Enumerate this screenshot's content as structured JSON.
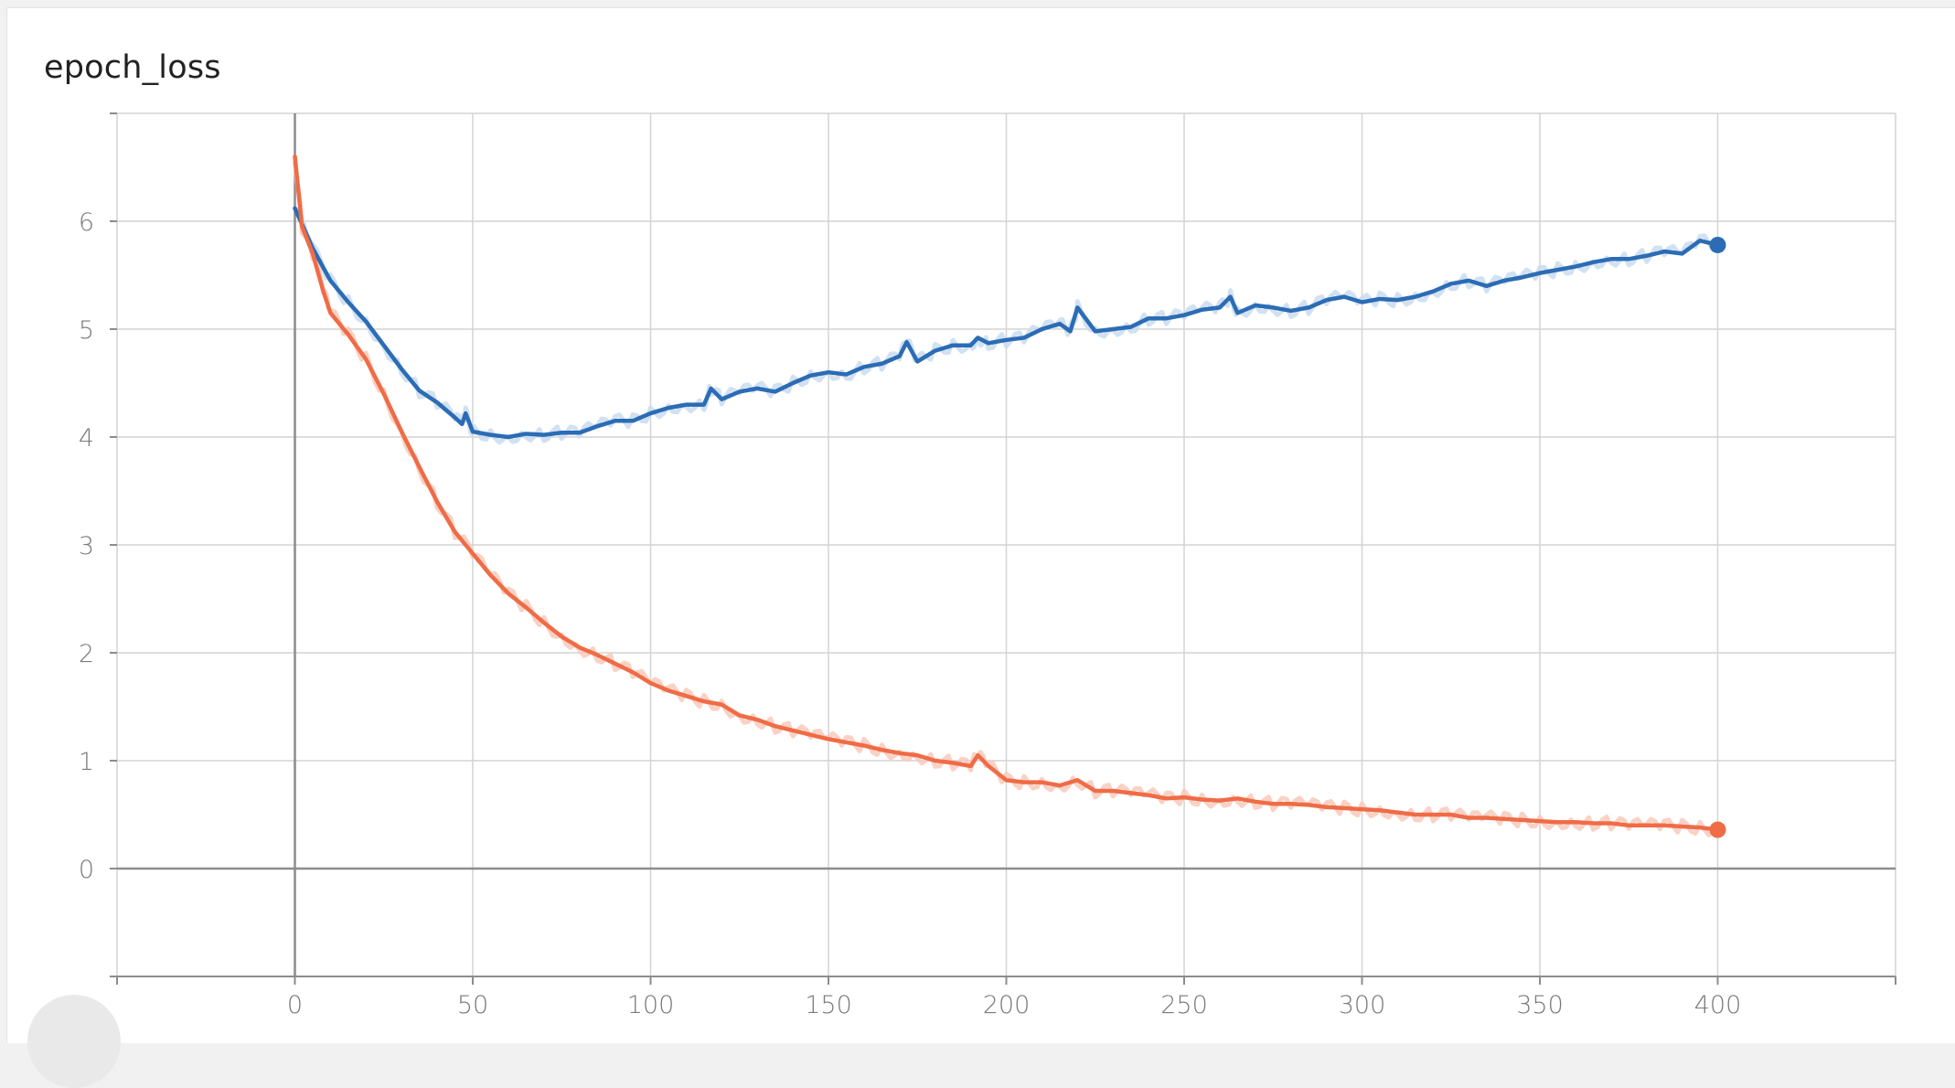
{
  "chart_data": {
    "type": "line",
    "title": "epoch_loss",
    "xlabel": "",
    "ylabel": "",
    "xlim": [
      -50,
      450
    ],
    "ylim": [
      -1,
      7
    ],
    "x_ticks": [
      0,
      50,
      100,
      150,
      200,
      250,
      300,
      350,
      400
    ],
    "y_ticks": [
      0,
      1,
      2,
      3,
      4,
      5,
      6
    ],
    "grid": true,
    "series": [
      {
        "color": "#2b6cb5",
        "raw_color": "#c9dcf0",
        "x": [
          0,
          5,
          10,
          15,
          20,
          25,
          30,
          35,
          40,
          45,
          47,
          48,
          50,
          55,
          60,
          65,
          70,
          75,
          80,
          85,
          90,
          95,
          100,
          105,
          110,
          115,
          117,
          120,
          125,
          130,
          135,
          140,
          145,
          150,
          155,
          160,
          165,
          170,
          172,
          175,
          180,
          185,
          190,
          192,
          195,
          200,
          205,
          210,
          215,
          218,
          220,
          225,
          230,
          235,
          240,
          245,
          250,
          255,
          260,
          263,
          265,
          270,
          275,
          280,
          285,
          290,
          295,
          300,
          305,
          310,
          315,
          320,
          325,
          330,
          335,
          340,
          345,
          350,
          355,
          360,
          365,
          370,
          375,
          380,
          385,
          390,
          395,
          400
        ],
        "values": [
          6.12,
          5.75,
          5.45,
          5.25,
          5.07,
          4.85,
          4.63,
          4.43,
          4.32,
          4.18,
          4.12,
          4.22,
          4.05,
          4.02,
          4.0,
          4.03,
          4.02,
          4.04,
          4.04,
          4.1,
          4.15,
          4.15,
          4.22,
          4.27,
          4.3,
          4.3,
          4.45,
          4.35,
          4.42,
          4.45,
          4.42,
          4.5,
          4.57,
          4.6,
          4.58,
          4.65,
          4.68,
          4.75,
          4.88,
          4.7,
          4.8,
          4.85,
          4.85,
          4.92,
          4.87,
          4.9,
          4.92,
          5.0,
          5.05,
          4.98,
          5.2,
          4.98,
          5.0,
          5.02,
          5.1,
          5.1,
          5.13,
          5.18,
          5.2,
          5.3,
          5.15,
          5.22,
          5.2,
          5.17,
          5.2,
          5.27,
          5.3,
          5.25,
          5.28,
          5.27,
          5.3,
          5.35,
          5.42,
          5.45,
          5.4,
          5.45,
          5.48,
          5.52,
          5.55,
          5.58,
          5.62,
          5.65,
          5.65,
          5.68,
          5.72,
          5.7,
          5.82,
          5.78
        ]
      },
      {
        "color": "#ef6c46",
        "raw_color": "#f8c9bb",
        "x": [
          0,
          2,
          5,
          8,
          10,
          15,
          20,
          25,
          30,
          35,
          40,
          45,
          50,
          55,
          60,
          65,
          70,
          75,
          80,
          85,
          90,
          95,
          100,
          105,
          110,
          115,
          120,
          125,
          130,
          135,
          140,
          145,
          150,
          155,
          160,
          165,
          170,
          175,
          180,
          185,
          190,
          192,
          195,
          200,
          205,
          210,
          215,
          220,
          225,
          230,
          235,
          240,
          245,
          250,
          255,
          260,
          265,
          270,
          275,
          280,
          285,
          290,
          295,
          300,
          305,
          310,
          315,
          320,
          325,
          330,
          335,
          340,
          345,
          350,
          355,
          360,
          365,
          370,
          375,
          380,
          385,
          390,
          395,
          400
        ],
        "values": [
          6.6,
          5.95,
          5.7,
          5.35,
          5.15,
          4.95,
          4.72,
          4.4,
          4.05,
          3.72,
          3.4,
          3.12,
          2.92,
          2.72,
          2.55,
          2.42,
          2.28,
          2.15,
          2.05,
          1.98,
          1.9,
          1.82,
          1.72,
          1.65,
          1.6,
          1.55,
          1.52,
          1.42,
          1.38,
          1.32,
          1.28,
          1.24,
          1.2,
          1.17,
          1.14,
          1.1,
          1.07,
          1.05,
          1.0,
          0.98,
          0.95,
          1.05,
          0.95,
          0.82,
          0.8,
          0.8,
          0.77,
          0.82,
          0.72,
          0.72,
          0.7,
          0.68,
          0.65,
          0.66,
          0.64,
          0.63,
          0.65,
          0.62,
          0.6,
          0.6,
          0.59,
          0.57,
          0.56,
          0.55,
          0.54,
          0.52,
          0.5,
          0.5,
          0.5,
          0.47,
          0.47,
          0.46,
          0.45,
          0.44,
          0.43,
          0.43,
          0.42,
          0.42,
          0.4,
          0.4,
          0.4,
          0.39,
          0.38,
          0.36
        ]
      }
    ]
  }
}
